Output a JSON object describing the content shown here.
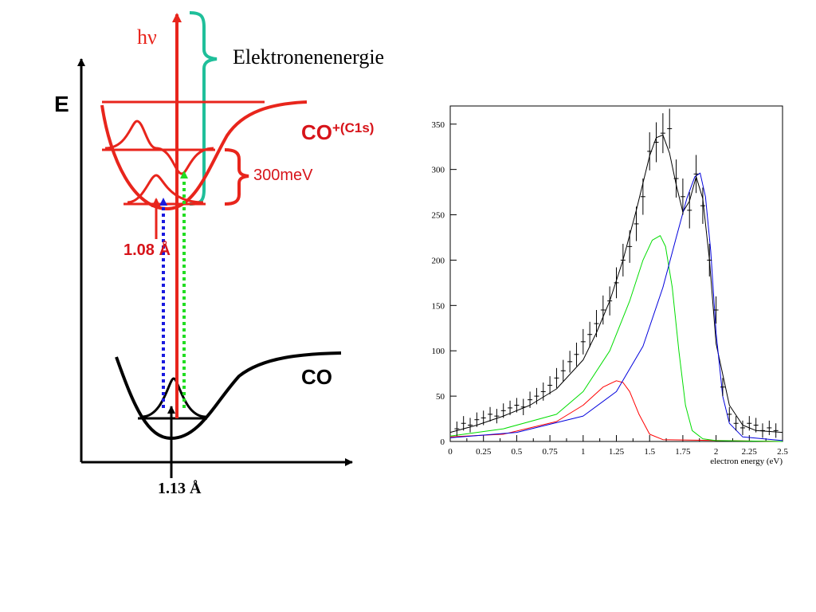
{
  "diagram": {
    "photon_label": "hν",
    "electron_energy_label": "Elektronenenergie",
    "energy_axis_label": "E",
    "ion_state_label": "CO",
    "ion_state_sup": "+(C1s)",
    "splitting_label": "300meV",
    "ion_bond_length": "1.08 Å",
    "ground_state_label": "CO",
    "ground_bond_length": "1.13 Å",
    "colors": {
      "red": "#e8251c",
      "ion_text": "#d7141a",
      "teal": "#1fbf9a",
      "blue_arrow": "#1a1adf",
      "green_arrow": "#22dd22",
      "black": "#000000"
    }
  },
  "chart_data": {
    "type": "line",
    "xlabel": "electron energy (eV)",
    "ylabel": "",
    "xlim": [
      0,
      2.5
    ],
    "ylim": [
      0,
      370
    ],
    "xticks": [
      0,
      0.25,
      0.5,
      0.75,
      1,
      1.25,
      1.5,
      1.75,
      2,
      2.25,
      2.5
    ],
    "xtick_labels": [
      "0",
      "0.25",
      "0.5",
      "0.75",
      "1",
      "1.25",
      "1.5",
      "1.75",
      "2",
      "2.25",
      "2.5"
    ],
    "yticks": [
      0,
      50,
      100,
      150,
      200,
      250,
      300,
      350
    ],
    "ytick_labels": [
      "0",
      "50",
      "100",
      "150",
      "200",
      "250",
      "300",
      "350"
    ],
    "grid": false,
    "series": [
      {
        "color": "#000000",
        "kind": "fit-total",
        "x": [
          0,
          0.2,
          0.4,
          0.6,
          0.8,
          1.0,
          1.1,
          1.2,
          1.3,
          1.4,
          1.5,
          1.55,
          1.6,
          1.65,
          1.7,
          1.75,
          1.8,
          1.85,
          1.9,
          1.95,
          2.0,
          2.1,
          2.2,
          2.3,
          2.5
        ],
        "y": [
          10,
          18,
          28,
          40,
          58,
          90,
          120,
          155,
          200,
          255,
          315,
          335,
          338,
          318,
          283,
          253,
          265,
          292,
          268,
          200,
          108,
          40,
          18,
          12,
          10
        ]
      },
      {
        "color": "#ff0000",
        "kind": "fit-component",
        "x": [
          0,
          0.4,
          0.8,
          1.0,
          1.15,
          1.25,
          1.3,
          1.35,
          1.42,
          1.5,
          1.6,
          2.5
        ],
        "y": [
          5,
          8,
          22,
          40,
          60,
          67,
          65,
          55,
          30,
          8,
          2,
          0
        ]
      },
      {
        "color": "#00dd00",
        "kind": "fit-component",
        "x": [
          0,
          0.4,
          0.8,
          1.0,
          1.2,
          1.35,
          1.45,
          1.52,
          1.58,
          1.62,
          1.67,
          1.72,
          1.77,
          1.82,
          1.9,
          2.0,
          2.5
        ],
        "y": [
          6,
          14,
          30,
          55,
          100,
          155,
          200,
          222,
          227,
          215,
          170,
          100,
          40,
          12,
          3,
          1,
          0
        ]
      },
      {
        "color": "#0000dd",
        "kind": "fit-component",
        "x": [
          0,
          0.5,
          1.0,
          1.25,
          1.45,
          1.6,
          1.7,
          1.78,
          1.84,
          1.88,
          1.92,
          1.96,
          2.0,
          2.05,
          2.1,
          2.2,
          2.5
        ],
        "y": [
          4,
          10,
          28,
          55,
          105,
          170,
          225,
          268,
          292,
          296,
          270,
          210,
          120,
          50,
          20,
          5,
          1
        ]
      },
      {
        "color": "#000000",
        "kind": "data-points",
        "x": [
          0.05,
          0.1,
          0.15,
          0.2,
          0.25,
          0.3,
          0.35,
          0.4,
          0.45,
          0.5,
          0.55,
          0.6,
          0.65,
          0.7,
          0.75,
          0.8,
          0.85,
          0.9,
          0.95,
          1.0,
          1.05,
          1.1,
          1.15,
          1.2,
          1.25,
          1.3,
          1.35,
          1.4,
          1.45,
          1.5,
          1.55,
          1.6,
          1.65,
          1.7,
          1.75,
          1.8,
          1.85,
          1.9,
          1.95,
          2.0,
          2.05,
          2.1,
          2.15,
          2.2,
          2.25,
          2.3,
          2.35,
          2.4,
          2.45
        ],
        "y": [
          14,
          20,
          18,
          24,
          26,
          30,
          28,
          34,
          37,
          40,
          38,
          46,
          50,
          55,
          62,
          70,
          78,
          88,
          96,
          110,
          118,
          130,
          145,
          155,
          175,
          200,
          215,
          240,
          270,
          320,
          330,
          340,
          345,
          290,
          270,
          255,
          295,
          260,
          200,
          145,
          60,
          30,
          20,
          15,
          20,
          18,
          12,
          15,
          12
        ],
        "yerr": [
          8,
          8,
          8,
          8,
          8,
          8,
          8,
          8,
          8,
          8,
          9,
          9,
          9,
          10,
          10,
          11,
          12,
          12,
          13,
          14,
          14,
          15,
          16,
          16,
          17,
          18,
          18,
          19,
          20,
          21,
          22,
          22,
          22,
          21,
          20,
          20,
          21,
          20,
          18,
          15,
          10,
          8,
          8,
          8,
          8,
          8,
          8,
          8,
          8
        ]
      }
    ]
  }
}
